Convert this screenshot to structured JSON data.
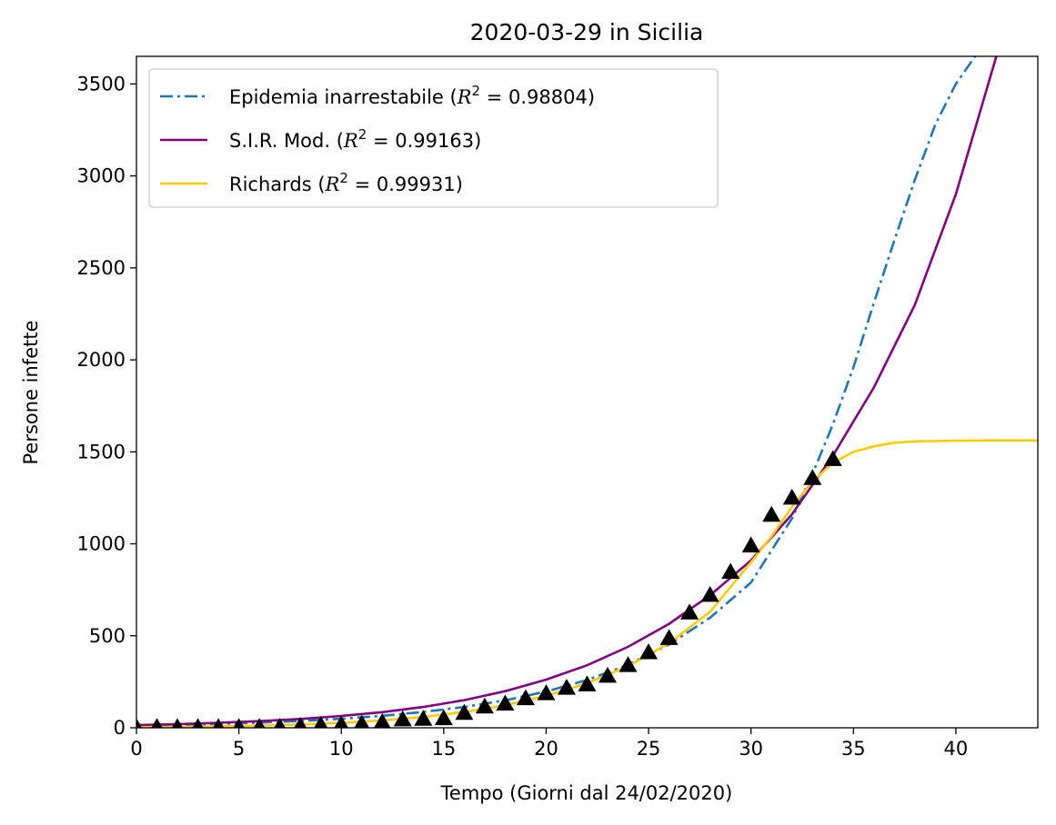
{
  "chart_data": {
    "type": "line",
    "title": "2020-03-29 in Sicilia",
    "xlabel": "Tempo (Giorni dal 24/02/2020)",
    "ylabel": "Persone infette",
    "xlim": [
      0,
      44
    ],
    "ylim": [
      0,
      3650
    ],
    "xticks": [
      0,
      5,
      10,
      15,
      20,
      25,
      30,
      35,
      40
    ],
    "yticks": [
      0,
      500,
      1000,
      1500,
      2000,
      2500,
      3000,
      3500
    ],
    "grid": false,
    "legend_position": "upper-left",
    "series": [
      {
        "name": "Epidemia inarrestabile",
        "r2_label": "R",
        "r2_value": "0.98804",
        "style": "dashdot",
        "color": "#1f77b4",
        "x": [
          0,
          2,
          4,
          6,
          8,
          10,
          12,
          14,
          16,
          18,
          20,
          22,
          24,
          26,
          28,
          30,
          32,
          33,
          34,
          35,
          36,
          37,
          38,
          39,
          40,
          41
        ],
        "y": [
          12,
          16,
          21,
          28,
          37,
          49,
          65,
          86,
          113,
          149,
          197,
          260,
          343,
          453,
          598,
          790,
          1138,
          1380,
          1650,
          1960,
          2310,
          2650,
          2980,
          3280,
          3500,
          3660
        ]
      },
      {
        "name": "S.I.R. Mod.",
        "r2_label": "R",
        "r2_value": "0.99163",
        "style": "solid",
        "color": "#800080",
        "x": [
          0,
          2,
          4,
          6,
          8,
          10,
          12,
          14,
          16,
          18,
          20,
          22,
          24,
          26,
          28,
          30,
          32,
          34,
          36,
          38,
          40,
          42
        ],
        "y": [
          15,
          20,
          27,
          36,
          48,
          64,
          85,
          113,
          150,
          199,
          262,
          340,
          440,
          565,
          720,
          910,
          1160,
          1480,
          1850,
          2300,
          2900,
          3660
        ]
      },
      {
        "name": "Richards",
        "r2_label": "R",
        "r2_value": "0.99931",
        "style": "solid",
        "color": "#ffcc00",
        "x": [
          0,
          2,
          4,
          6,
          8,
          10,
          12,
          14,
          16,
          18,
          20,
          22,
          24,
          26,
          28,
          30,
          31,
          32,
          33,
          34,
          35,
          36,
          37,
          38,
          40,
          42,
          44
        ],
        "y": [
          3,
          5,
          8,
          12,
          18,
          27,
          40,
          59,
          86,
          123,
          174,
          242,
          335,
          460,
          630,
          900,
          1040,
          1200,
          1340,
          1440,
          1500,
          1530,
          1550,
          1557,
          1561,
          1562,
          1562
        ]
      }
    ],
    "observed": {
      "marker": "triangle",
      "color": "#000000",
      "x": [
        0,
        1,
        2,
        3,
        4,
        5,
        6,
        7,
        8,
        9,
        10,
        11,
        12,
        13,
        14,
        15,
        16,
        17,
        18,
        19,
        20,
        21,
        22,
        23,
        24,
        25,
        26,
        27,
        28,
        29,
        30,
        31,
        32,
        33,
        34
      ],
      "y": [
        3,
        4,
        3,
        3,
        3,
        3,
        4,
        5,
        10,
        15,
        18,
        22,
        30,
        45,
        48,
        51,
        80,
        115,
        131,
        160,
        187,
        217,
        235,
        282,
        340,
        410,
        487,
        626,
        722,
        847,
        990,
        1157,
        1250,
        1357,
        1460
      ]
    }
  }
}
